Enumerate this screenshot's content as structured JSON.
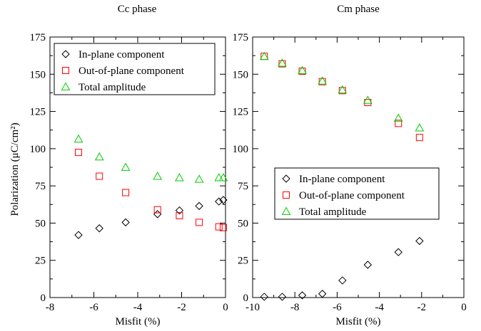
{
  "figure": {
    "ylabel": "Polarization (μC/cm²)"
  },
  "chart_data": [
    {
      "type": "scatter",
      "title": "Cc phase",
      "xlabel": "Misfit (%)",
      "ylabel": "Polarization (μC/cm²)",
      "xlim": [
        -8,
        0
      ],
      "ylim": [
        0,
        175
      ],
      "xticks": [
        -8,
        -6,
        -4,
        -2,
        0
      ],
      "yticks": [
        0,
        25,
        50,
        75,
        100,
        125,
        150,
        175
      ],
      "grid": false,
      "legend_position": "top-left",
      "series": [
        {
          "name": "In-plane component",
          "marker": "diamond",
          "color": "#000000",
          "x": [
            -6.7,
            -5.75,
            -4.55,
            -3.1,
            -2.1,
            -1.2,
            -0.3,
            -0.1
          ],
          "y": [
            42,
            46.5,
            50.5,
            56,
            58.5,
            61.5,
            64.5,
            65.5
          ]
        },
        {
          "name": "Out-of-plane component",
          "marker": "square",
          "color": "#ff0000",
          "x": [
            -6.7,
            -5.75,
            -4.55,
            -3.1,
            -2.1,
            -1.2,
            -0.3,
            -0.1
          ],
          "y": [
            97.5,
            81.5,
            70.5,
            59,
            55,
            50.5,
            47.5,
            47
          ]
        },
        {
          "name": "Total amplitude",
          "marker": "triangle",
          "color": "#00cc00",
          "x": [
            -6.7,
            -5.75,
            -4.55,
            -3.1,
            -2.1,
            -1.2,
            -0.3,
            -0.1
          ],
          "y": [
            106.5,
            94.5,
            87.5,
            81.5,
            80.5,
            79.5,
            80.5,
            80.5
          ]
        }
      ]
    },
    {
      "type": "scatter",
      "title": "Cm phase",
      "xlabel": "Misfit (%)",
      "ylabel": "",
      "xlim": [
        -10,
        0
      ],
      "ylim": [
        0,
        175
      ],
      "xticks": [
        -10,
        -8,
        -6,
        -4,
        -2,
        0
      ],
      "yticks": [
        0,
        25,
        50,
        75,
        100,
        125,
        150,
        175
      ],
      "grid": false,
      "legend_position": "center-left",
      "series": [
        {
          "name": "In-plane component",
          "marker": "diamond",
          "color": "#000000",
          "x": [
            -9.45,
            -8.6,
            -7.65,
            -6.7,
            -5.75,
            -4.55,
            -3.1,
            -2.1
          ],
          "y": [
            0.5,
            0.5,
            1.5,
            2.5,
            11.5,
            22,
            30.5,
            38
          ]
        },
        {
          "name": "Out-of-plane component",
          "marker": "square",
          "color": "#ff0000",
          "x": [
            -9.45,
            -8.6,
            -7.65,
            -6.7,
            -5.75,
            -4.55,
            -3.1,
            -2.1
          ],
          "y": [
            162,
            157,
            152,
            145,
            139,
            131,
            117,
            107.5
          ]
        },
        {
          "name": "Total amplitude",
          "marker": "triangle",
          "color": "#00cc00",
          "x": [
            -9.45,
            -8.6,
            -7.65,
            -6.7,
            -5.75,
            -4.55,
            -3.1,
            -2.1
          ],
          "y": [
            162,
            157.5,
            152.5,
            145.5,
            139.5,
            132.5,
            120.5,
            114
          ]
        }
      ]
    }
  ]
}
